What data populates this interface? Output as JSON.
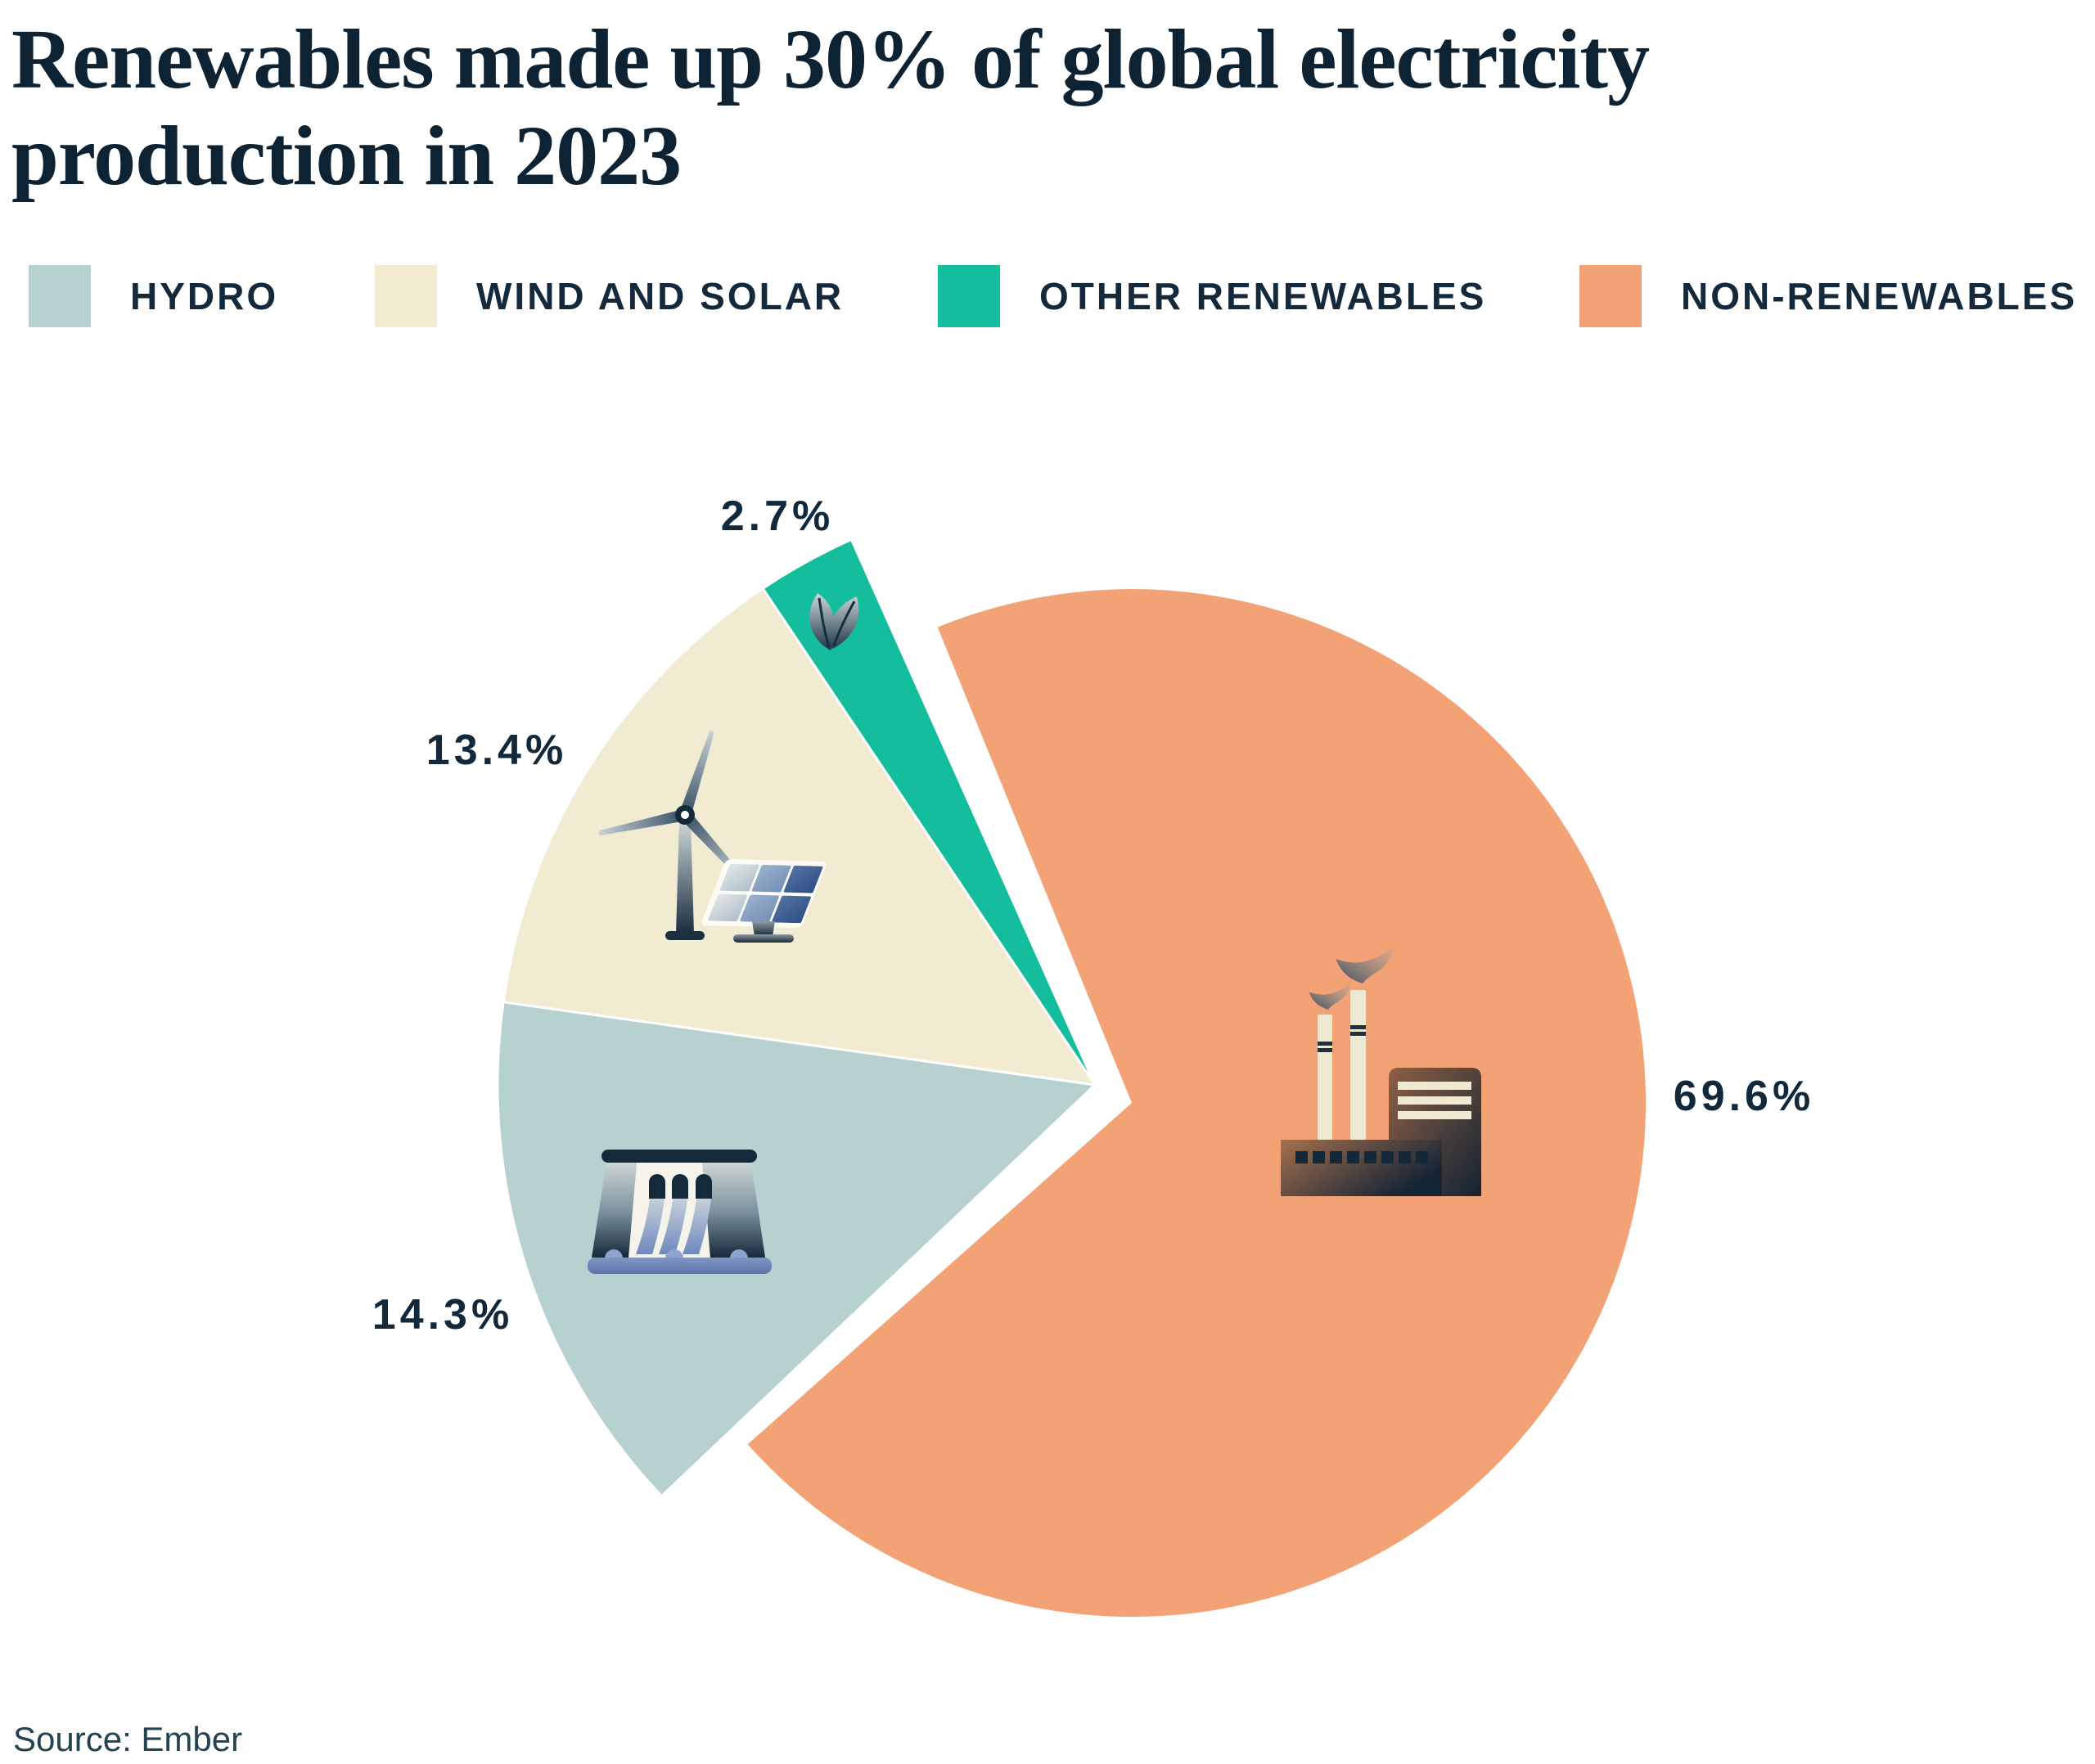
{
  "title": "Renewables made up 30% of global electricity production in 2023",
  "legend": {
    "items": [
      {
        "label": "HYDRO",
        "color": "#b7d1d1"
      },
      {
        "label": "WIND AND SOLAR",
        "color": "#f1ebd1"
      },
      {
        "label": "OTHER RENEWABLES",
        "color": "#14bd9c"
      },
      {
        "label": "NON-RENEWABLES",
        "color": "#f3a276"
      }
    ]
  },
  "source": "Source: Ember",
  "chart_data": {
    "type": "pie",
    "title": "Renewables made up 30% of global electricity production in 2023",
    "unit": "percent of global electricity production, 2023",
    "legend_position": "top",
    "style": "exploded pie; renewables group (hydro, wind and solar, other renewables) pulled apart from non-renewables slice; icons drawn inside slices",
    "slices": [
      {
        "name": "Hydro",
        "value": 14.3,
        "label": "14.3%",
        "color": "#b7d1d1",
        "icon": "hydro-dam-icon"
      },
      {
        "name": "Wind and solar",
        "value": 13.4,
        "label": "13.4%",
        "color": "#f1ebd1",
        "icon": "wind-turbine-and-solar-panel-icon"
      },
      {
        "name": "Other renewables",
        "value": 2.7,
        "label": "2.7%",
        "color": "#14bd9c",
        "icon": "leaf-icon"
      },
      {
        "name": "Non-renewables",
        "value": 69.6,
        "label": "69.6%",
        "color": "#f3a276",
        "icon": "factory-icon"
      }
    ]
  }
}
